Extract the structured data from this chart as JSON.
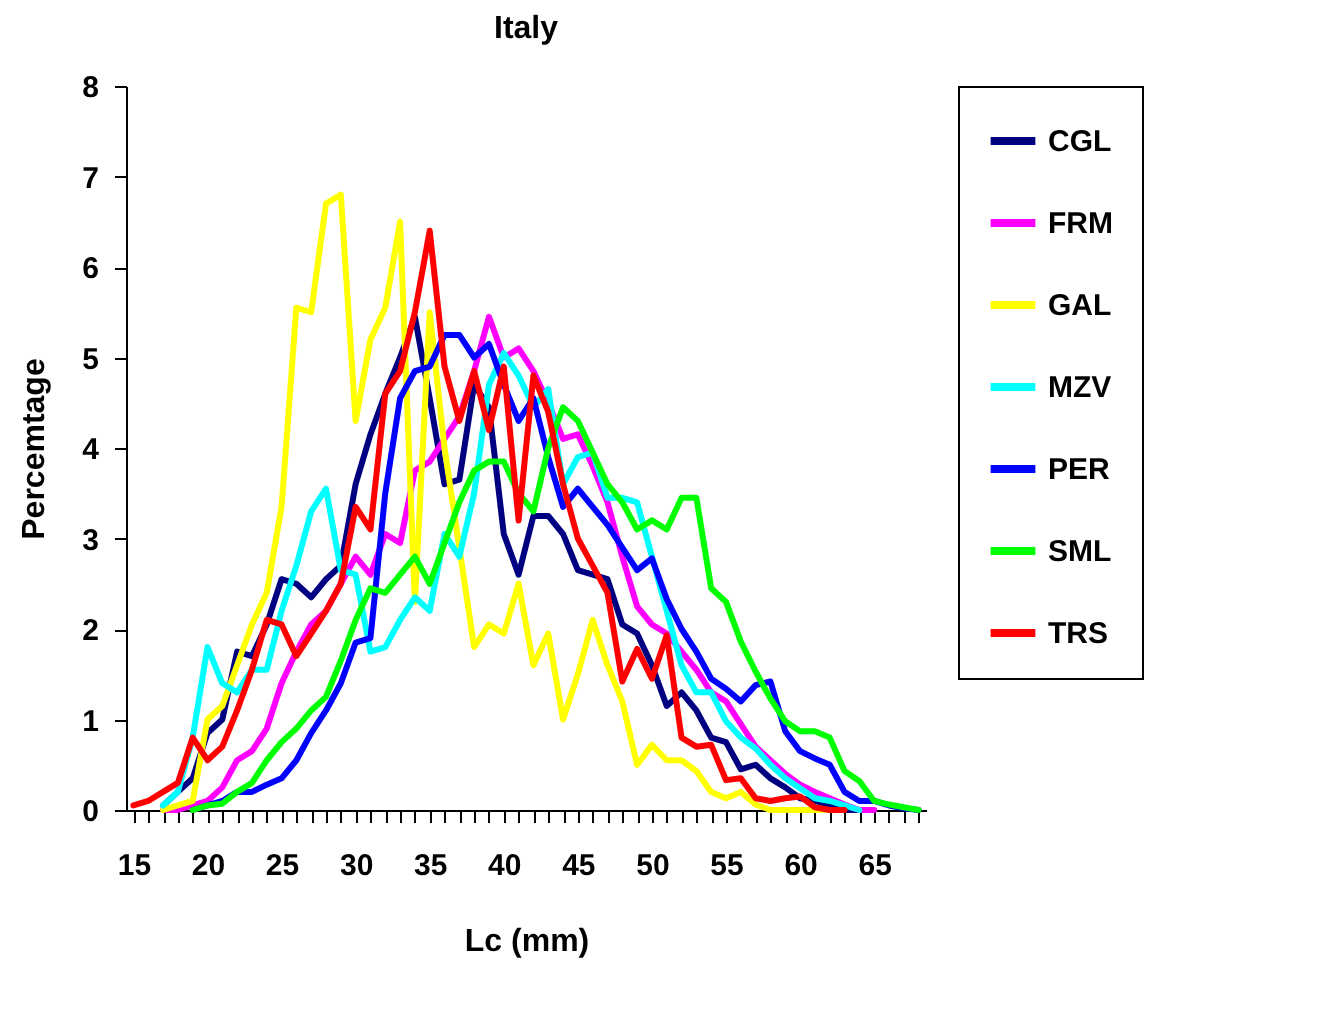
{
  "chart_data": {
    "type": "line",
    "title": "Italy",
    "xlabel": "Lc (mm)",
    "ylabel": "Percemtage",
    "legend": "right",
    "x": [
      15,
      16,
      17,
      18,
      19,
      20,
      21,
      22,
      23,
      24,
      25,
      26,
      27,
      28,
      29,
      30,
      31,
      32,
      33,
      34,
      35,
      36,
      37,
      38,
      39,
      40,
      41,
      42,
      43,
      44,
      45,
      46,
      47,
      48,
      49,
      50,
      51,
      52,
      53,
      54,
      55,
      56,
      57,
      58,
      59,
      60,
      61,
      62,
      63,
      64,
      65,
      66,
      67,
      68
    ],
    "xlim": [
      14.5,
      68.5
    ],
    "xticks": [
      15,
      {
        "value": 16,
        "label": null
      },
      {
        "value": 17,
        "label": null
      },
      {
        "value": 18,
        "label": null
      },
      {
        "value": 19,
        "label": null
      },
      20,
      {
        "value": 21,
        "label": null
      },
      {
        "value": 22,
        "label": null
      },
      {
        "value": 23,
        "label": null
      },
      {
        "value": 24,
        "label": null
      },
      25,
      {
        "value": 26,
        "label": null
      },
      {
        "value": 27,
        "label": null
      },
      {
        "value": 28,
        "label": null
      },
      {
        "value": 29,
        "label": null
      },
      30,
      {
        "value": 31,
        "label": null
      },
      {
        "value": 32,
        "label": null
      },
      {
        "value": 33,
        "label": null
      },
      {
        "value": 34,
        "label": null
      },
      35,
      {
        "value": 36,
        "label": null
      },
      {
        "value": 37,
        "label": null
      },
      {
        "value": 38,
        "label": null
      },
      {
        "value": 39,
        "label": null
      },
      40,
      {
        "value": 41,
        "label": null
      },
      {
        "value": 42,
        "label": null
      },
      {
        "value": 43,
        "label": null
      },
      {
        "value": 44,
        "label": null
      },
      45,
      {
        "value": 46,
        "label": null
      },
      {
        "value": 47,
        "label": null
      },
      {
        "value": 48,
        "label": null
      },
      {
        "value": 49,
        "label": null
      },
      50,
      {
        "value": 51,
        "label": null
      },
      {
        "value": 52,
        "label": null
      },
      {
        "value": 53,
        "label": null
      },
      {
        "value": 54,
        "label": null
      },
      55,
      {
        "value": 56,
        "label": null
      },
      {
        "value": 57,
        "label": null
      },
      {
        "value": 58,
        "label": null
      },
      {
        "value": 59,
        "label": null
      },
      60,
      {
        "value": 61,
        "label": null
      },
      {
        "value": 62,
        "label": null
      },
      {
        "value": 63,
        "label": null
      },
      {
        "value": 64,
        "label": null
      },
      65,
      {
        "value": 66,
        "label": null
      },
      {
        "value": 67,
        "label": null
      },
      {
        "value": 68,
        "label": null
      }
    ],
    "ylim": [
      0,
      8
    ],
    "yticks": [
      0,
      1,
      2,
      3,
      4,
      5,
      6,
      7,
      8
    ],
    "series": [
      {
        "name": "CGL",
        "color": "#000080",
        "values": [
          null,
          null,
          0.05,
          0.2,
          0.35,
          0.85,
          1.0,
          1.75,
          1.7,
          2.05,
          2.55,
          2.5,
          2.35,
          2.55,
          2.7,
          3.6,
          4.15,
          4.6,
          5.0,
          5.45,
          4.55,
          3.6,
          3.65,
          4.7,
          4.45,
          3.05,
          2.6,
          3.25,
          3.25,
          3.05,
          2.65,
          2.6,
          2.55,
          2.05,
          1.95,
          1.6,
          1.15,
          1.3,
          1.1,
          0.8,
          0.75,
          0.45,
          0.5,
          0.35,
          0.25,
          0.13,
          0.1,
          0.05,
          0,
          0,
          null,
          null,
          null,
          null
        ]
      },
      {
        "name": "FRM",
        "color": "#ff00ff",
        "values": [
          null,
          null,
          0,
          0,
          0.05,
          0.1,
          0.25,
          0.55,
          0.65,
          0.9,
          1.4,
          1.75,
          2.05,
          2.2,
          2.5,
          2.8,
          2.6,
          3.05,
          2.95,
          3.75,
          3.85,
          4.1,
          4.35,
          4.85,
          5.45,
          5.0,
          5.1,
          4.85,
          4.5,
          4.1,
          4.15,
          3.8,
          3.4,
          2.8,
          2.25,
          2.05,
          1.95,
          1.75,
          1.55,
          1.3,
          1.2,
          0.95,
          0.7,
          0.55,
          0.4,
          0.28,
          0.2,
          0.13,
          0.06,
          0,
          0,
          null,
          null,
          null
        ]
      },
      {
        "name": "GAL",
        "color": "#ffff00",
        "values": [
          null,
          null,
          0,
          0.05,
          0.1,
          1.0,
          1.15,
          1.6,
          2.05,
          2.4,
          3.35,
          5.55,
          5.5,
          6.7,
          6.8,
          4.3,
          5.2,
          5.55,
          6.5,
          2.3,
          5.5,
          4.0,
          2.9,
          1.8,
          2.05,
          1.95,
          2.5,
          1.6,
          1.95,
          1.0,
          1.5,
          2.1,
          1.6,
          1.2,
          0.5,
          0.72,
          0.55,
          0.55,
          0.43,
          0.2,
          0.13,
          0.2,
          0.06,
          0,
          0,
          0,
          0,
          0,
          null,
          null,
          null,
          null,
          null,
          null
        ]
      },
      {
        "name": "MZV",
        "color": "#00ffff",
        "values": [
          null,
          null,
          0.05,
          0.2,
          0.8,
          1.8,
          1.4,
          1.3,
          1.55,
          1.55,
          2.2,
          2.7,
          3.3,
          3.55,
          2.65,
          2.6,
          1.75,
          1.8,
          2.1,
          2.35,
          2.2,
          3.05,
          2.8,
          3.5,
          4.7,
          5.05,
          4.8,
          4.45,
          4.65,
          3.6,
          3.9,
          3.95,
          3.45,
          3.45,
          3.4,
          2.8,
          2.2,
          1.6,
          1.3,
          1.3,
          0.98,
          0.8,
          0.68,
          0.5,
          0.35,
          0.24,
          0.13,
          0.1,
          0.05,
          0,
          null,
          null,
          null,
          null
        ]
      },
      {
        "name": "PER",
        "color": "#0000ff",
        "values": [
          null,
          null,
          null,
          null,
          0,
          0.05,
          0.1,
          0.2,
          0.2,
          0.28,
          0.35,
          0.55,
          0.85,
          1.1,
          1.4,
          1.85,
          1.9,
          3.5,
          4.55,
          4.85,
          4.9,
          5.25,
          5.25,
          5.0,
          5.15,
          4.7,
          4.3,
          4.55,
          3.9,
          3.35,
          3.55,
          3.35,
          3.15,
          2.9,
          2.65,
          2.78,
          2.33,
          2.0,
          1.75,
          1.45,
          1.34,
          1.2,
          1.38,
          1.42,
          0.87,
          0.65,
          0.57,
          0.5,
          0.2,
          0.1,
          0.1,
          0.05,
          0.02,
          0
        ]
      },
      {
        "name": "SML",
        "color": "#00ff00",
        "values": [
          null,
          null,
          null,
          null,
          0,
          0.05,
          0.07,
          0.2,
          0.3,
          0.55,
          0.75,
          0.9,
          1.1,
          1.25,
          1.65,
          2.1,
          2.45,
          2.4,
          2.6,
          2.8,
          2.5,
          2.95,
          3.4,
          3.75,
          3.85,
          3.85,
          3.5,
          3.3,
          4.0,
          4.45,
          4.3,
          3.95,
          3.6,
          3.4,
          3.1,
          3.2,
          3.1,
          3.45,
          3.45,
          2.45,
          2.3,
          1.86,
          1.53,
          1.23,
          0.98,
          0.87,
          0.87,
          0.8,
          0.43,
          0.32,
          0.1,
          0.06,
          0.03,
          0
        ]
      },
      {
        "name": "TRS",
        "color": "#ff0000",
        "values": [
          0.05,
          0.1,
          0.2,
          0.3,
          0.8,
          0.55,
          0.7,
          1.1,
          1.55,
          2.1,
          2.05,
          1.7,
          1.95,
          2.2,
          2.5,
          3.35,
          3.1,
          4.6,
          4.85,
          5.5,
          6.4,
          4.9,
          4.3,
          4.85,
          4.2,
          4.9,
          3.2,
          4.8,
          4.4,
          3.6,
          3.0,
          2.7,
          2.4,
          1.42,
          1.78,
          1.45,
          1.93,
          0.8,
          0.7,
          0.72,
          0.33,
          0.35,
          0.13,
          0.1,
          0.13,
          0.15,
          0.03,
          0,
          0,
          null,
          null,
          null,
          null,
          null
        ]
      }
    ]
  }
}
